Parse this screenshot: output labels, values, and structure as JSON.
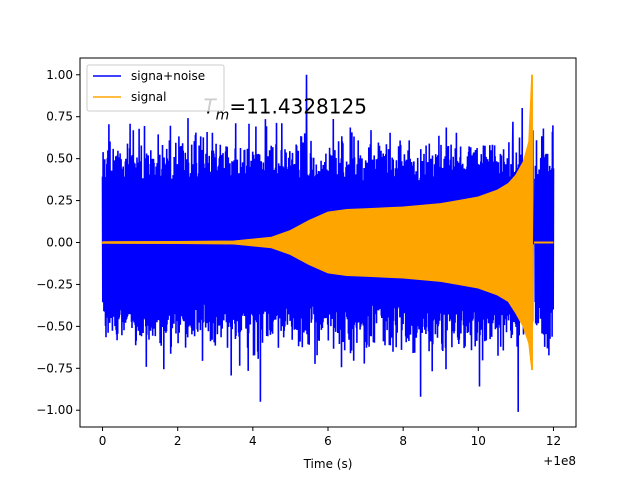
{
  "chart_data": {
    "type": "line",
    "title": "",
    "xlabel": "Time (s)",
    "ylabel": "",
    "xlim": [
      -0.6,
      12.6
    ],
    "ylim": [
      -1.1,
      1.1
    ],
    "x_offset_label": "+1e8",
    "xticks": [
      0,
      2,
      4,
      6,
      8,
      10,
      12
    ],
    "xtick_labels": [
      "0",
      "2",
      "4",
      "6",
      "8",
      "10",
      "12"
    ],
    "yticks": [
      1.0,
      0.75,
      0.5,
      0.25,
      0.0,
      -0.25,
      -0.5,
      -0.75,
      -1.0
    ],
    "ytick_labels": [
      "1.00",
      "0.75",
      "0.50",
      "0.25",
      "0.00",
      "−0.25",
      "−0.50",
      "−0.75",
      "−1.00"
    ],
    "grid": false,
    "legend_position": "top-left",
    "annotation": {
      "text_prefix": "T",
      "text_subscript": "m",
      "text_value": "=11.4328125",
      "x": 3.75,
      "y": 0.81
    },
    "series": [
      {
        "name": "signa+noise",
        "color": "#0000ff",
        "kind": "noisy-band",
        "x_start": 0.0,
        "x_end": 12.0,
        "typical_amplitude": 0.45,
        "extreme_max": 1.0,
        "extreme_min": -1.01,
        "ringdown_gap": [
          11.45,
          11.5
        ]
      },
      {
        "name": "signal",
        "color": "#ffa500",
        "kind": "chirp-envelope",
        "x_start": 0.0,
        "x_end": 12.0,
        "merger_time": 11.4328125,
        "upper_envelope": [
          [
            0.0,
            0.003
          ],
          [
            2.0,
            0.005
          ],
          [
            3.5,
            0.008
          ],
          [
            4.5,
            0.03
          ],
          [
            5.0,
            0.07
          ],
          [
            5.5,
            0.13
          ],
          [
            6.0,
            0.18
          ],
          [
            6.5,
            0.195
          ],
          [
            7.0,
            0.2
          ],
          [
            8.0,
            0.21
          ],
          [
            9.0,
            0.23
          ],
          [
            9.5,
            0.25
          ],
          [
            10.0,
            0.27
          ],
          [
            10.5,
            0.31
          ],
          [
            10.8,
            0.35
          ],
          [
            11.0,
            0.4
          ],
          [
            11.2,
            0.48
          ],
          [
            11.35,
            0.6
          ],
          [
            11.43,
            1.0
          ]
        ],
        "lower_envelope": [
          [
            0.0,
            -0.003
          ],
          [
            2.0,
            -0.005
          ],
          [
            3.5,
            -0.008
          ],
          [
            4.5,
            -0.03
          ],
          [
            5.0,
            -0.07
          ],
          [
            5.5,
            -0.13
          ],
          [
            6.0,
            -0.18
          ],
          [
            6.5,
            -0.195
          ],
          [
            7.0,
            -0.2
          ],
          [
            8.0,
            -0.21
          ],
          [
            9.0,
            -0.23
          ],
          [
            9.5,
            -0.25
          ],
          [
            10.0,
            -0.27
          ],
          [
            10.5,
            -0.31
          ],
          [
            10.8,
            -0.35
          ],
          [
            11.0,
            -0.42
          ],
          [
            11.2,
            -0.5
          ],
          [
            11.35,
            -0.6
          ],
          [
            11.43,
            -0.76
          ]
        ]
      }
    ]
  }
}
